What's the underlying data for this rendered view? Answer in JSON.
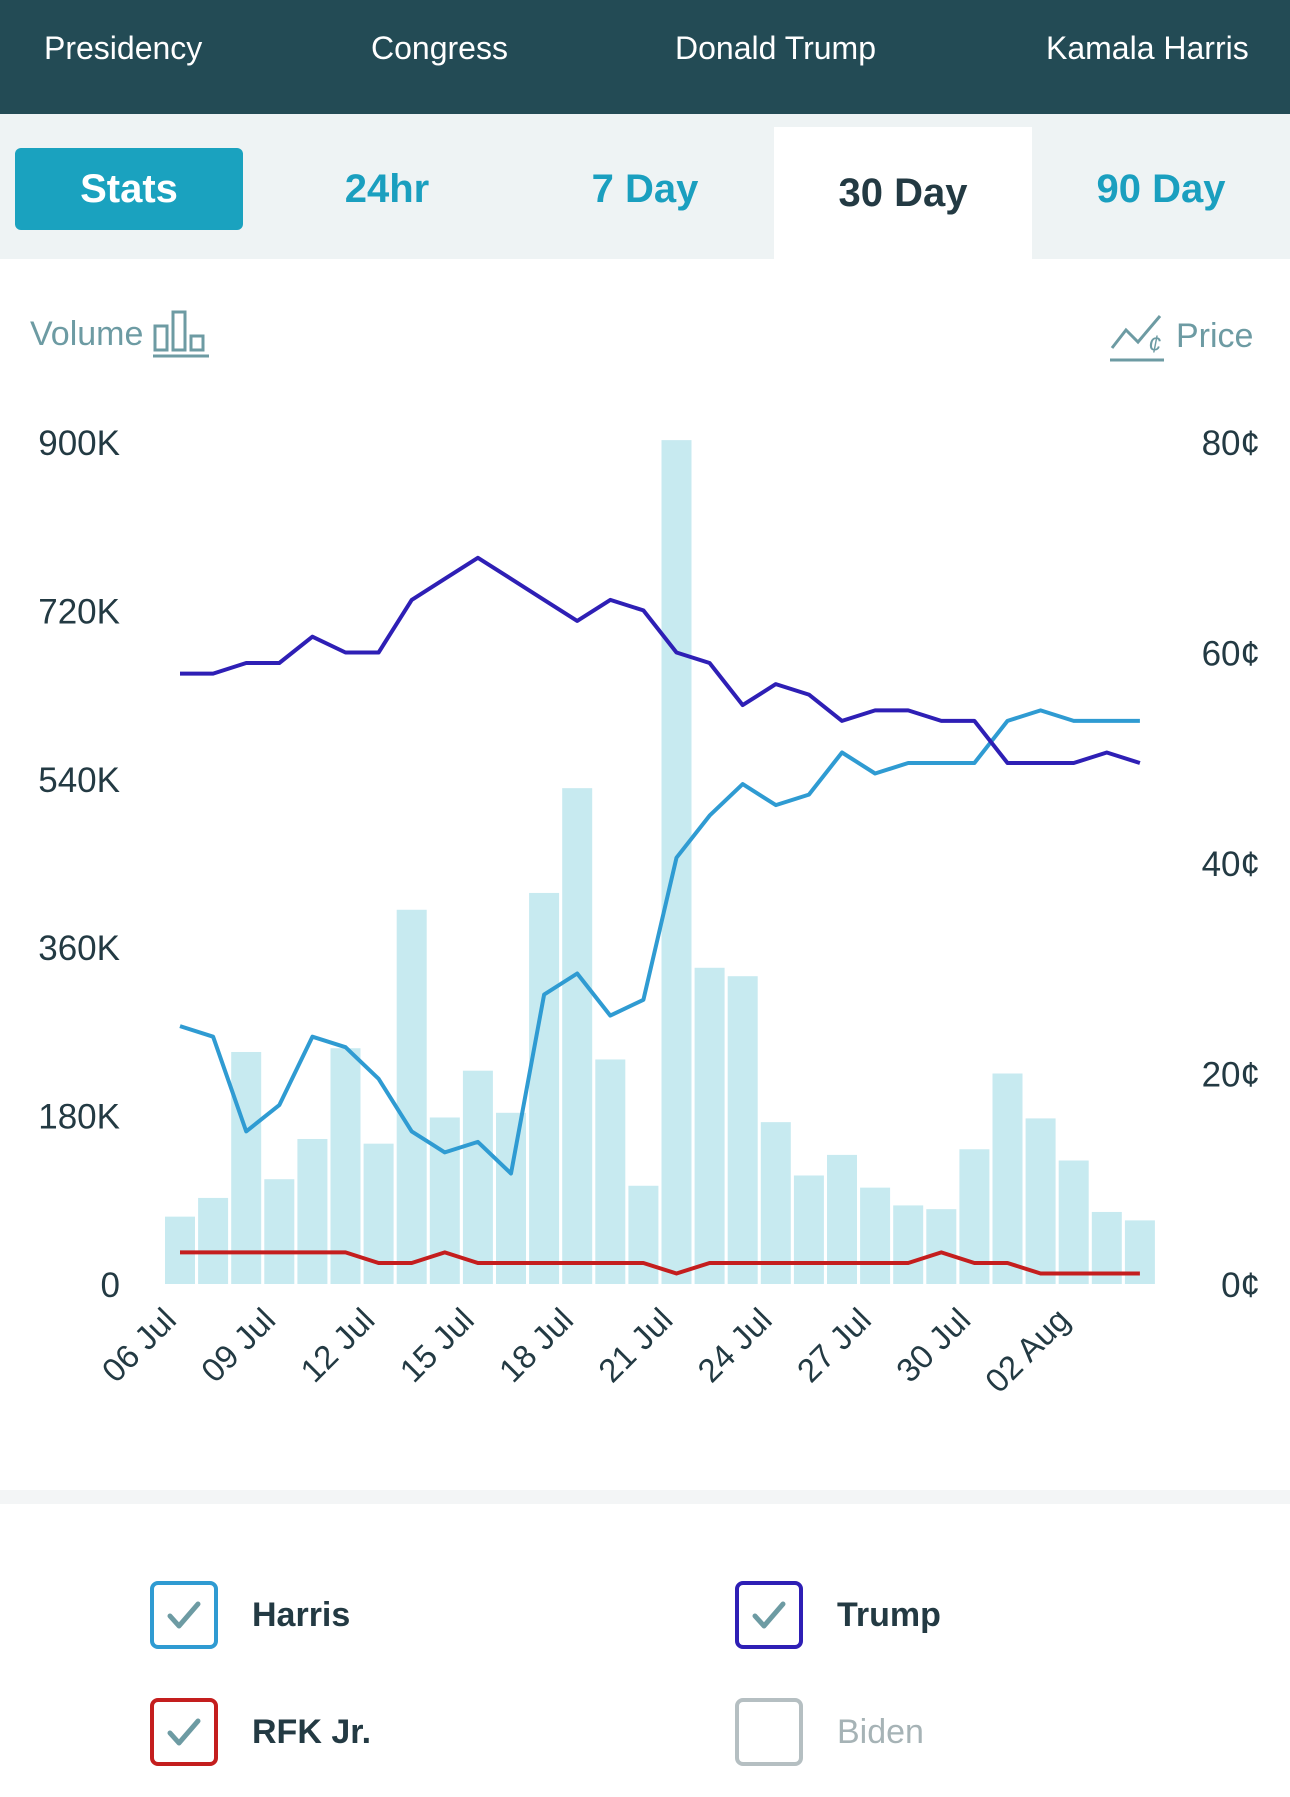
{
  "nav": {
    "items": [
      "Presidency",
      "Congress",
      "Donald Trump",
      "Kamala Harris"
    ]
  },
  "tabs": {
    "stats": "Stats",
    "items": [
      "24hr",
      "7 Day",
      "30 Day",
      "90 Day"
    ],
    "active": "30 Day"
  },
  "toggles": {
    "volume": "Volume",
    "price": "Price"
  },
  "colors": {
    "harris": "#2f9bd2",
    "trump": "#2e1fb5",
    "rfk": "#c41e1e",
    "biden": "#b5bfc2",
    "volume_bar": "#c7eaf0",
    "nav_bg": "#234b55",
    "accent": "#1aa2bf"
  },
  "chart_data": {
    "type": "bar",
    "x": [
      "06 Jul",
      "07 Jul",
      "08 Jul",
      "09 Jul",
      "10 Jul",
      "11 Jul",
      "12 Jul",
      "13 Jul",
      "14 Jul",
      "15 Jul",
      "16 Jul",
      "17 Jul",
      "18 Jul",
      "19 Jul",
      "20 Jul",
      "21 Jul",
      "22 Jul",
      "23 Jul",
      "24 Jul",
      "25 Jul",
      "26 Jul",
      "27 Jul",
      "28 Jul",
      "29 Jul",
      "30 Jul",
      "31 Jul",
      "01 Aug",
      "02 Aug",
      "03 Aug",
      "04 Aug"
    ],
    "x_tick_labels": [
      "06 Jul",
      "09 Jul",
      "12 Jul",
      "15 Jul",
      "18 Jul",
      "21 Jul",
      "24 Jul",
      "27 Jul",
      "30 Jul",
      "02 Aug"
    ],
    "volume": {
      "values": [
        72000,
        92000,
        248000,
        112000,
        155000,
        252000,
        150000,
        400000,
        178000,
        228000,
        183000,
        418000,
        530000,
        240000,
        105000,
        902000,
        338000,
        329000,
        173000,
        116000,
        138000,
        103000,
        84000,
        80000,
        144000,
        225000,
        177000,
        132000,
        77000,
        68000
      ],
      "axis_ticks": [
        "0",
        "180K",
        "360K",
        "540K",
        "720K",
        "900K"
      ],
      "ylim": [
        0,
        900000
      ]
    },
    "price_axis_ticks": [
      "0¢",
      "20¢",
      "40¢",
      "60¢",
      "80¢"
    ],
    "price_ylim": [
      0,
      80
    ],
    "series": [
      {
        "name": "Harris",
        "values": [
          24.5,
          23.5,
          14.5,
          17,
          23.5,
          22.5,
          19.5,
          14.5,
          12.5,
          13.5,
          10.5,
          27.5,
          29.5,
          25.5,
          27,
          40.5,
          44.5,
          47.5,
          45.5,
          46.5,
          50.5,
          48.5,
          49.5,
          49.5,
          49.5,
          53.5,
          54.5,
          53.5,
          53.5,
          53.5
        ]
      },
      {
        "name": "Trump",
        "values": [
          58,
          58,
          59,
          59,
          61.5,
          60,
          60,
          65,
          67,
          69,
          67,
          65,
          63,
          65,
          64,
          60,
          59,
          55,
          57,
          56,
          53.5,
          54.5,
          54.5,
          53.5,
          53.5,
          49.5,
          49.5,
          49.5,
          50.5,
          49.5
        ]
      },
      {
        "name": "RFK Jr.",
        "values": [
          3,
          3,
          3,
          3,
          3,
          3,
          2,
          2,
          3,
          2,
          2,
          2,
          2,
          2,
          2,
          1,
          2,
          2,
          2,
          2,
          2,
          2,
          2,
          3,
          2,
          2,
          1,
          1,
          1,
          1
        ]
      }
    ],
    "legend": [
      {
        "label": "Harris",
        "checked": true
      },
      {
        "label": "Trump",
        "checked": true
      },
      {
        "label": "RFK Jr.",
        "checked": true
      },
      {
        "label": "Biden",
        "checked": false
      }
    ],
    "grid": false
  }
}
